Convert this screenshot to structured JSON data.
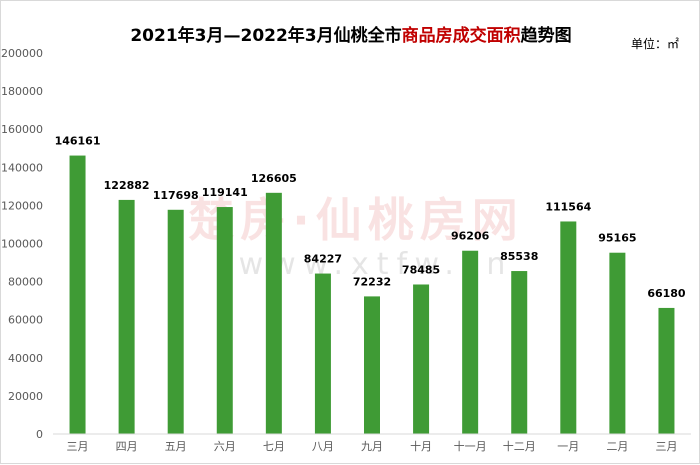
{
  "title": {
    "prefix": "2021年3月—2022年3月仙桃全市",
    "highlight": "商品房成交面积",
    "suffix": "趋势图"
  },
  "unit_label": "单位：㎡",
  "watermark": {
    "text": "楚房·仙桃房网",
    "url": "www.xtfw.cn"
  },
  "colors": {
    "bar": "#3f9b35",
    "title_highlight": "#c00000",
    "axis": "#d9d9d9"
  },
  "chart_data": {
    "type": "bar",
    "title": "2021年3月—2022年3月仙桃全市商品房成交面积趋势图",
    "categories": [
      "三月",
      "四月",
      "五月",
      "六月",
      "七月",
      "八月",
      "九月",
      "十月",
      "十一月",
      "十二月",
      "一月",
      "二月",
      "三月"
    ],
    "values": [
      146161,
      122882,
      117698,
      119141,
      126605,
      84227,
      72232,
      78485,
      96206,
      85538,
      111564,
      95165,
      66180
    ],
    "ylim": [
      0,
      200000
    ],
    "yticks": [
      0,
      20000,
      40000,
      60000,
      80000,
      100000,
      120000,
      140000,
      160000,
      180000,
      200000
    ],
    "xlabel": "",
    "ylabel": "",
    "grid": false,
    "data_labels": true
  }
}
